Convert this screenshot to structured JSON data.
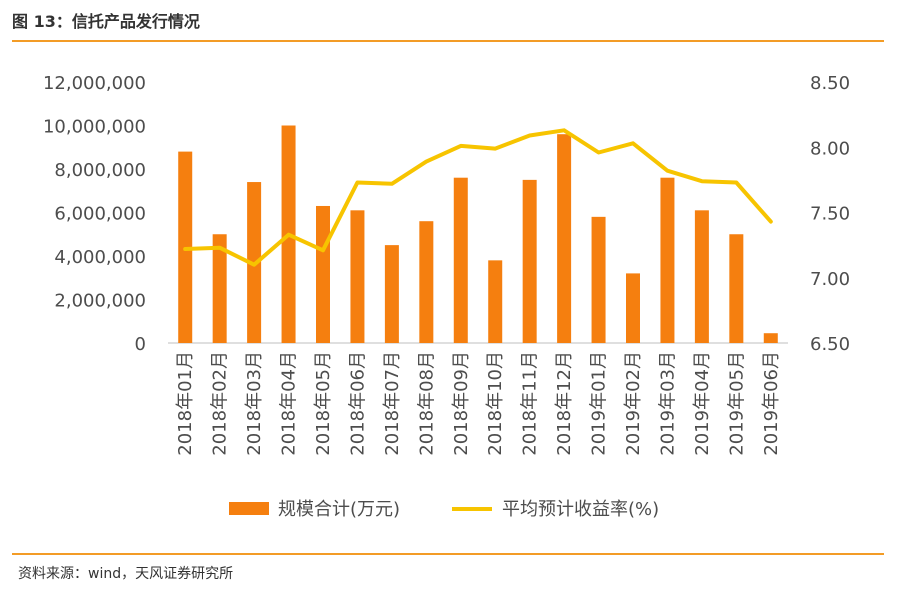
{
  "header": {
    "title": "图 13：信托产品发行情况"
  },
  "footer": {
    "source": "资料来源：wind，天风证券研究所"
  },
  "colors": {
    "bar": "#f57f0f",
    "line": "#f7c400",
    "rule": "#f39c26"
  },
  "chart_data": {
    "type": "bar+line",
    "categories": [
      "2018年01月",
      "2018年02月",
      "2018年03月",
      "2018年04月",
      "2018年05月",
      "2018年06月",
      "2018年07月",
      "2018年08月",
      "2018年09月",
      "2018年10月",
      "2018年11月",
      "2018年12月",
      "2019年01月",
      "2019年02月",
      "2019年03月",
      "2019年04月",
      "2019年05月",
      "2019年06月"
    ],
    "series": [
      {
        "name": "规模合计(万元)",
        "type": "bar",
        "axis": "left",
        "values": [
          8800000,
          5000000,
          7400000,
          10000000,
          6300000,
          6100000,
          4500000,
          5600000,
          7600000,
          3800000,
          7500000,
          9600000,
          5800000,
          3200000,
          7600000,
          6100000,
          5000000,
          450000
        ]
      },
      {
        "name": "平均预计收益率(%)",
        "type": "line",
        "axis": "right",
        "values": [
          7.22,
          7.23,
          7.1,
          7.33,
          7.21,
          7.73,
          7.72,
          7.89,
          8.01,
          7.99,
          8.09,
          8.13,
          7.96,
          8.03,
          7.82,
          7.74,
          7.73,
          7.43
        ]
      }
    ],
    "left_axis": {
      "min": 0,
      "max": 12000000,
      "step": 2000000,
      "tick_labels": [
        "0",
        "2,000,000",
        "4,000,000",
        "6,000,000",
        "8,000,000",
        "10,000,000",
        "12,000,000"
      ]
    },
    "right_axis": {
      "min": 6.5,
      "max": 8.5,
      "step": 0.5,
      "tick_labels": [
        "6.50",
        "7.00",
        "7.50",
        "8.00",
        "8.50"
      ]
    },
    "legend": [
      "规模合计(万元)",
      "平均预计收益率(%)"
    ],
    "legend_position": "bottom",
    "grid": false
  }
}
